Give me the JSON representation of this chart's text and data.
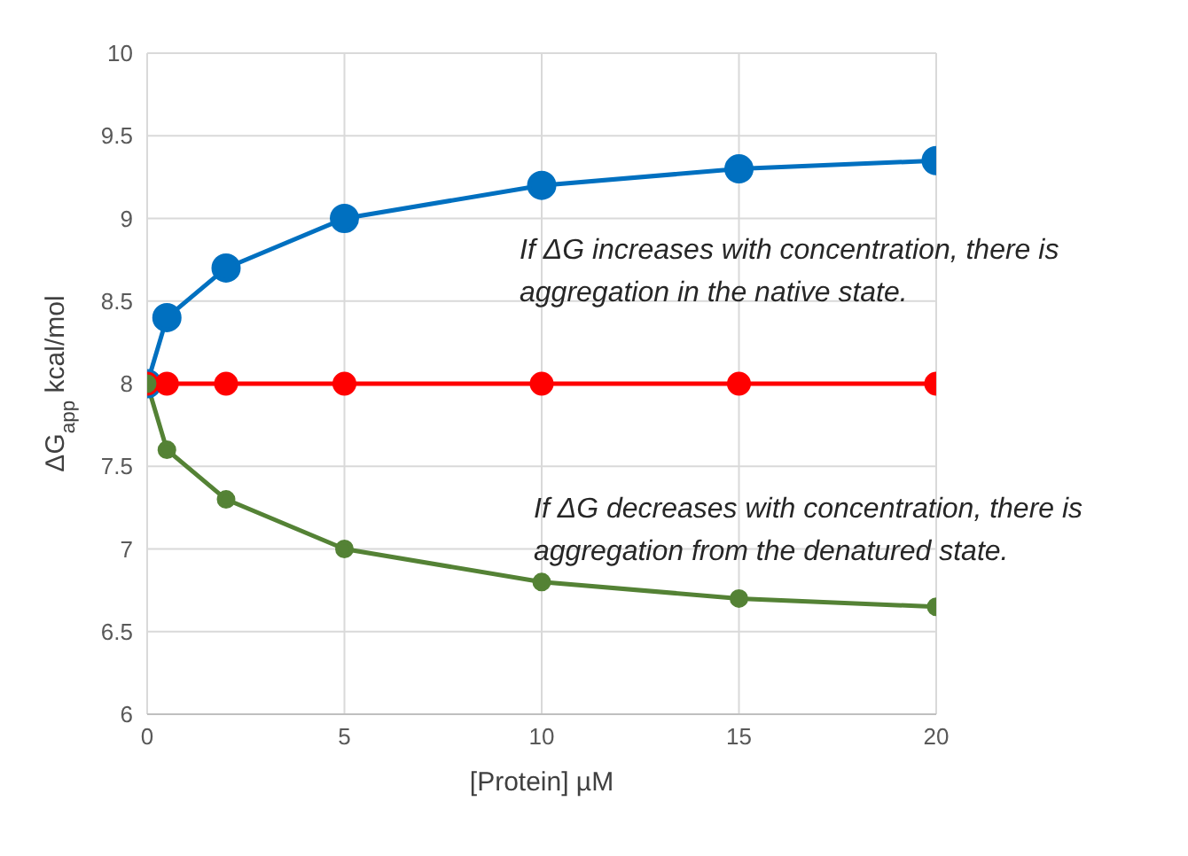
{
  "chart_data": {
    "type": "line",
    "xlabel": "[Protein] µM",
    "ylabel": "ΔG$_{app}$ kcal/mol",
    "x": [
      0,
      0.5,
      2,
      5,
      10,
      15,
      20
    ],
    "series": [
      {
        "color": "#0070c0",
        "values": [
          8,
          8.4,
          8.7,
          9.0,
          9.2,
          9.3,
          9.35
        ]
      },
      {
        "color": "#ff0000",
        "values": [
          8,
          8,
          8,
          8,
          8,
          8,
          8
        ]
      },
      {
        "color": "#548235",
        "values": [
          8,
          7.6,
          7.3,
          7.0,
          6.8,
          6.7,
          6.65
        ]
      }
    ],
    "xlim": [
      0,
      20
    ],
    "xticks": [
      0,
      5,
      10,
      15,
      20
    ],
    "ylim": [
      6,
      10
    ],
    "yticks": [
      6,
      6.5,
      7,
      7.5,
      8,
      8.5,
      9,
      9.5,
      10
    ],
    "grid": true,
    "marker": "circle",
    "line_style": "solid",
    "annotations": [
      "If ΔG increases with concentration, there is aggregation in the native state.",
      "If ΔG decreases with concentration, there is aggregation from the denatured state."
    ]
  }
}
